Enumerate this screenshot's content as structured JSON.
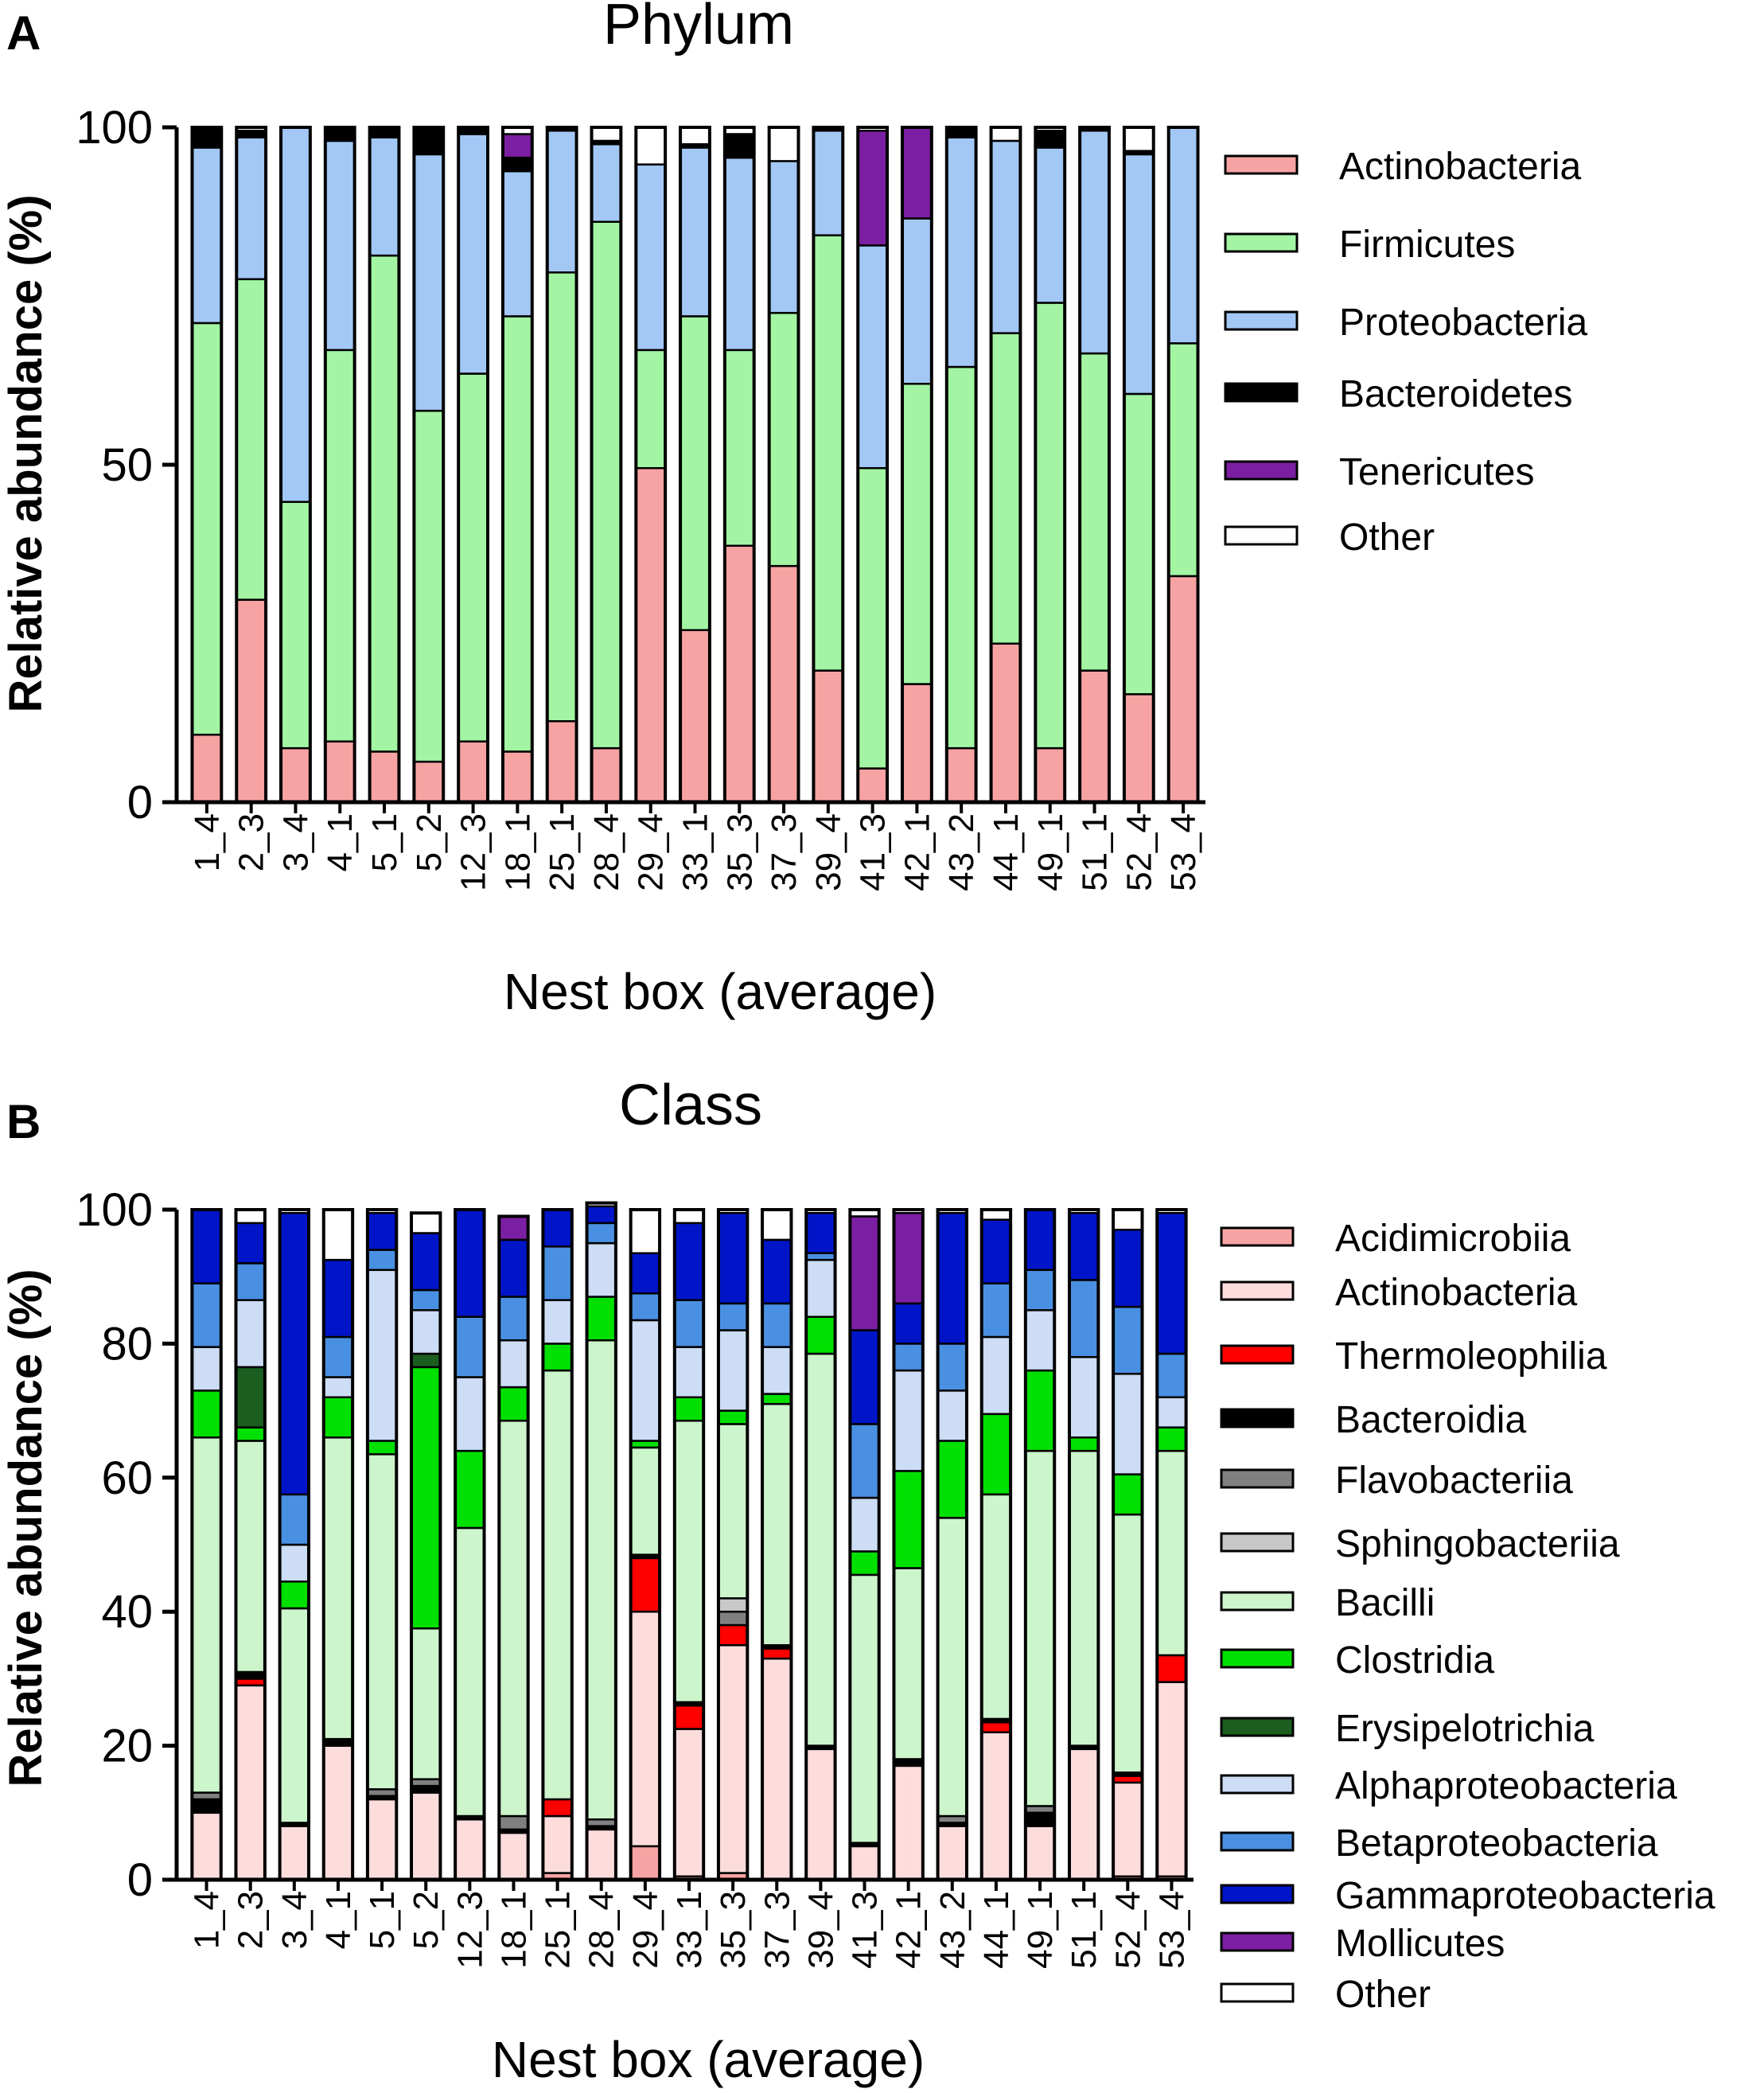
{
  "chart_data": [
    {
      "panel": "A",
      "type": "bar",
      "stacked": true,
      "title": "Phylum",
      "xlabel": "Nest box (average)",
      "ylabel": "Relative abundance (%)",
      "ylim": [
        0,
        100
      ],
      "yticks": [
        0,
        50,
        100
      ],
      "categories": [
        "1_4",
        "2_3",
        "3_4",
        "4_1",
        "5_1",
        "5_2",
        "12_3",
        "18_1",
        "25_1",
        "28_4",
        "29_4",
        "33_1",
        "35_3",
        "37_3",
        "39_4",
        "41_3",
        "42_1",
        "43_2",
        "44_1",
        "49_1",
        "51_1",
        "52_4",
        "53_4"
      ],
      "series": [
        {
          "name": "Actinobacteria",
          "color": "#F8A3A3",
          "values": [
            10,
            30,
            8,
            9,
            7.5,
            6,
            9,
            7.5,
            12,
            8,
            49.5,
            25.5,
            38,
            35,
            19.5,
            5,
            17.5,
            8,
            23.5,
            8,
            19.5,
            16,
            33.5
          ]
        },
        {
          "name": "Firmicutes",
          "color": "#A3F5A3",
          "values": [
            61,
            47.5,
            36.5,
            58,
            73.5,
            52,
            54.5,
            64.5,
            66.5,
            78,
            17.5,
            46.5,
            29,
            37.5,
            64.5,
            44.5,
            44.5,
            56.5,
            46,
            66,
            47,
            44.5,
            34.5
          ]
        },
        {
          "name": "Proteobacteria",
          "color": "#A3C8F5",
          "values": [
            26,
            21,
            55.5,
            31,
            17.5,
            38,
            35.5,
            21.5,
            21,
            11.5,
            27.5,
            25,
            28.5,
            22.5,
            15.5,
            33,
            24.5,
            34,
            28.5,
            23,
            33,
            35.5,
            32
          ]
        },
        {
          "name": "Bacteroidetes",
          "color": "#000000",
          "values": [
            3,
            1,
            0,
            2,
            1.5,
            4,
            1,
            2,
            0.5,
            0.5,
            0,
            0.5,
            3.5,
            0,
            0.5,
            0,
            0,
            1.5,
            0,
            2.5,
            0.5,
            0.5,
            0
          ]
        },
        {
          "name": "Tenericutes",
          "color": "#7B1FA2",
          "values": [
            0,
            0,
            0,
            0,
            0,
            0,
            0,
            3.5,
            0,
            0,
            0,
            0,
            0,
            0,
            0,
            17,
            13.5,
            0,
            0,
            0,
            0,
            0,
            0
          ]
        },
        {
          "name": "Other",
          "color": "#FFFFFF",
          "values": [
            0,
            0.5,
            0,
            0,
            0,
            0,
            0,
            1,
            0,
            2,
            5.5,
            2.5,
            1,
            5,
            0,
            0.5,
            0,
            0,
            2,
            0.5,
            0,
            3.5,
            0
          ]
        }
      ]
    },
    {
      "panel": "B",
      "type": "bar",
      "stacked": true,
      "title": "Class",
      "xlabel": "Nest box (average)",
      "ylabel": "Relative abundance (%)",
      "ylim": [
        0,
        100
      ],
      "yticks": [
        0,
        20,
        40,
        60,
        80,
        100
      ],
      "categories": [
        "1_4",
        "2_3",
        "3_4",
        "4_1",
        "5_1",
        "5_2",
        "12_3",
        "18_1",
        "25_1",
        "28_4",
        "29_4",
        "33_1",
        "35_3",
        "37_3",
        "39_4",
        "41_3",
        "42_1",
        "43_2",
        "44_1",
        "49_1",
        "51_1",
        "52_4",
        "53_4"
      ],
      "series": [
        {
          "name": "Acidimicrobiia",
          "color": "#F8A3A3",
          "values": [
            0,
            0,
            0,
            0,
            0,
            0,
            0,
            0,
            1,
            0,
            5,
            0.5,
            1,
            0,
            0,
            0,
            0,
            0,
            0,
            0,
            0,
            0.5,
            0.5
          ]
        },
        {
          "name": "Actinobacteria",
          "color": "#FDDCDC",
          "values": [
            10,
            29,
            8,
            20,
            12,
            13,
            9,
            7,
            8.5,
            7.5,
            35,
            22,
            34,
            33,
            19.5,
            5,
            17,
            8,
            22,
            8,
            19.5,
            14,
            29
          ]
        },
        {
          "name": "Thermoleophilia",
          "color": "#FF0000",
          "values": [
            0,
            1,
            0,
            0,
            0,
            0,
            0,
            0,
            2.5,
            0,
            8,
            3.5,
            3,
            1.5,
            0,
            0,
            0,
            0,
            1.5,
            0,
            0,
            1,
            4
          ]
        },
        {
          "name": "Bacteroidia",
          "color": "#000000",
          "values": [
            2,
            1,
            0.5,
            1,
            0.5,
            1,
            0.5,
            0.5,
            0,
            0.5,
            0.5,
            0.5,
            0,
            0.5,
            0.5,
            0.5,
            1,
            0.5,
            0.5,
            2,
            0.5,
            0.5,
            0
          ]
        },
        {
          "name": "Flavobacteriia",
          "color": "#808080",
          "values": [
            1,
            0,
            0,
            0,
            1,
            1,
            0,
            2,
            0,
            1,
            0,
            0,
            2,
            0,
            0,
            0,
            0,
            1,
            0,
            1,
            0,
            0,
            0
          ]
        },
        {
          "name": "Sphingobacteriia",
          "color": "#C8C8C8",
          "values": [
            0,
            0,
            0,
            0,
            0,
            0,
            0,
            0,
            0,
            0,
            0,
            0,
            2,
            0,
            0,
            0,
            0,
            0,
            0,
            0,
            0,
            0,
            0
          ]
        },
        {
          "name": "Bacilli",
          "color": "#CCF5CC",
          "values": [
            53,
            34.5,
            32,
            45,
            50,
            22.5,
            43,
            59,
            64,
            71.5,
            16,
            42,
            26,
            36,
            58.5,
            40,
            28.5,
            44.5,
            33.5,
            53,
            44,
            38.5,
            30.5
          ]
        },
        {
          "name": "Clostridia",
          "color": "#00E000",
          "values": [
            7,
            2,
            4,
            6,
            2,
            39,
            11.5,
            5,
            4,
            6.5,
            1,
            3.5,
            2,
            1.5,
            5.5,
            3.5,
            14.5,
            11.5,
            12,
            12,
            2,
            6,
            3.5
          ]
        },
        {
          "name": "Erysipelotrichia",
          "color": "#1B5E20",
          "values": [
            0,
            9,
            0,
            0,
            0,
            2,
            0,
            0,
            0,
            0,
            0,
            0,
            0,
            0,
            0,
            0,
            0,
            0,
            0,
            0,
            0,
            0,
            0
          ]
        },
        {
          "name": "Alphaproteobacteria",
          "color": "#CCDDF5",
          "values": [
            6.5,
            10,
            5.5,
            3,
            25.5,
            6.5,
            11,
            7,
            6.5,
            8,
            18,
            7.5,
            12,
            7,
            8.5,
            8,
            15,
            7.5,
            11.5,
            9,
            12,
            15,
            4.5
          ]
        },
        {
          "name": "Betaproteobacteria",
          "color": "#4A90E2",
          "values": [
            9.5,
            5.5,
            7.5,
            6,
            3,
            3,
            9,
            6.5,
            8,
            3,
            4,
            7,
            4,
            6.5,
            1,
            11,
            4,
            7,
            8,
            6,
            11.5,
            10,
            6.5
          ]
        },
        {
          "name": "Gammaproteobacteria",
          "color": "#0015C8",
          "values": [
            11,
            6,
            42,
            11.5,
            5.5,
            8.5,
            16,
            8.5,
            5.5,
            2.5,
            6,
            11.5,
            13.5,
            9.5,
            6,
            14,
            6,
            19.5,
            9.5,
            9,
            10,
            11.5,
            21
          ]
        },
        {
          "name": "Mollicutes",
          "color": "#7B1FA2",
          "values": [
            0,
            0,
            0,
            0,
            0,
            0,
            0,
            3.5,
            0,
            0,
            0,
            0,
            0,
            0,
            0,
            17,
            13.5,
            0,
            0,
            0,
            0,
            0,
            0
          ]
        },
        {
          "name": "Other",
          "color": "#FFFFFF",
          "values": [
            0,
            2,
            0.5,
            7.5,
            0.5,
            3,
            0,
            0,
            0,
            0.5,
            6.5,
            2,
            0.5,
            4.5,
            0.5,
            1,
            0.5,
            0.5,
            1.5,
            0,
            0.5,
            3,
            0.5
          ]
        }
      ]
    }
  ]
}
